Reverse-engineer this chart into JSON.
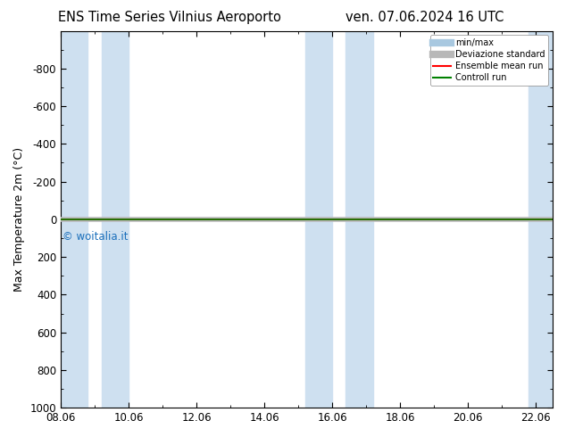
{
  "title_left": "ENS Time Series Vilnius Aeroporto",
  "title_right": "ven. 07.06.2024 16 UTC",
  "ylabel": "Max Temperature 2m (°C)",
  "ylim_top": -1000,
  "ylim_bottom": 1000,
  "yticks": [
    -800,
    -600,
    -400,
    -200,
    0,
    200,
    400,
    600,
    800,
    1000
  ],
  "xtick_labels": [
    "08.06",
    "10.06",
    "12.06",
    "14.06",
    "16.06",
    "18.06",
    "20.06",
    "22.06"
  ],
  "xtick_positions": [
    0,
    2,
    4,
    6,
    8,
    10,
    12,
    14
  ],
  "xlim": [
    0,
    14.5
  ],
  "shaded_bands": [
    [
      0,
      0.8
    ],
    [
      1.2,
      2.0
    ],
    [
      7.2,
      8.0
    ],
    [
      8.4,
      9.2
    ],
    [
      13.8,
      14.5
    ]
  ],
  "shaded_color": "#cee0f0",
  "ensemble_mean_color": "#ff0000",
  "control_run_color": "#008000",
  "std_dev_color": "#b8b8b8",
  "minmax_color": "#a8c8e0",
  "watermark": "© woitalia.it",
  "watermark_color": "#1a6fbb",
  "legend_labels": [
    "min/max",
    "Deviazione standard",
    "Ensemble mean run",
    "Controll run"
  ],
  "background_color": "#ffffff",
  "title_fontsize": 10.5,
  "axis_fontsize": 9,
  "tick_fontsize": 8.5
}
